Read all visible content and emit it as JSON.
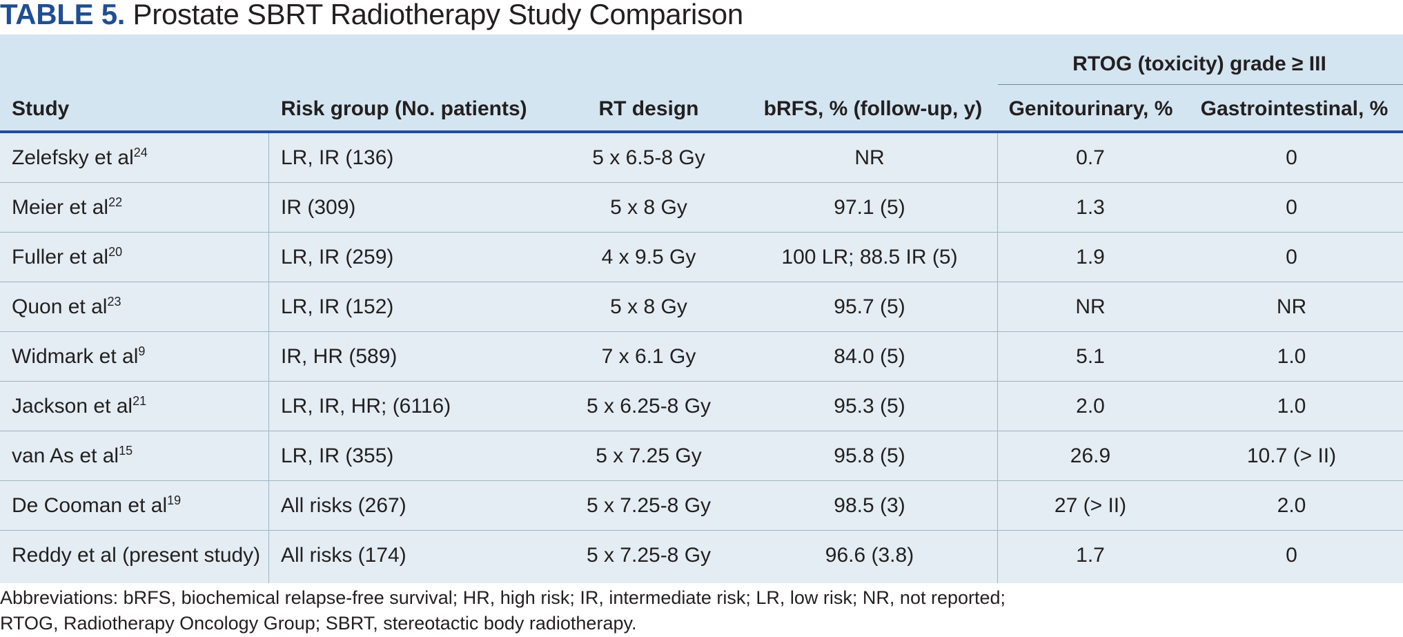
{
  "title": {
    "label": "TABLE 5.",
    "text": "Prostate SBRT Radiotherapy Study Comparison"
  },
  "table": {
    "group_header": "RTOG (toxicity) grade ≥ III",
    "columns": {
      "study": "Study",
      "risk": "Risk group (No. patients)",
      "rt": "RT design",
      "brfs": "bRFS, % (follow-up, y)",
      "gu": "Genitourinary, %",
      "gi": "Gastrointestinal, %"
    },
    "rows": [
      {
        "study": "Zelefsky et al",
        "ref": "24",
        "risk": "LR, IR (136)",
        "rt": "5 x 6.5-8 Gy",
        "brfs": "NR",
        "gu": "0.7",
        "gi": "0"
      },
      {
        "study": "Meier et al",
        "ref": "22",
        "risk": "IR (309)",
        "rt": "5 x 8 Gy",
        "brfs": "97.1 (5)",
        "gu": "1.3",
        "gi": "0"
      },
      {
        "study": "Fuller et al",
        "ref": "20",
        "risk": "LR, IR (259)",
        "rt": "4 x 9.5 Gy",
        "brfs": "100 LR; 88.5 IR (5)",
        "gu": "1.9",
        "gi": "0"
      },
      {
        "study": "Quon et al",
        "ref": "23",
        "risk": "LR, IR (152)",
        "rt": "5 x 8 Gy",
        "brfs": "95.7 (5)",
        "gu": "NR",
        "gi": "NR"
      },
      {
        "study": "Widmark et al",
        "ref": "9",
        "risk": "IR, HR (589)",
        "rt": "7 x 6.1 Gy",
        "brfs": "84.0 (5)",
        "gu": "5.1",
        "gi": "1.0"
      },
      {
        "study": "Jackson et al",
        "ref": "21",
        "risk": "LR, IR, HR; (6116)",
        "rt": "5 x 6.25-8 Gy",
        "brfs": "95.3 (5)",
        "gu": "2.0",
        "gi": "1.0"
      },
      {
        "study": "van As et al",
        "ref": "15",
        "risk": "LR, IR (355)",
        "rt": "5 x 7.25 Gy",
        "brfs": "95.8 (5)",
        "gu": "26.9",
        "gi": "10.7 (> II)"
      },
      {
        "study": "De Cooman et al",
        "ref": "19",
        "risk": "All risks (267)",
        "rt": "5 x 7.25-8 Gy",
        "brfs": "98.5 (3)",
        "gu": "27 (> II)",
        "gi": "2.0"
      },
      {
        "study": "Reddy et al (present study)",
        "ref": "",
        "risk": "All risks (174)",
        "rt": "5 x 7.25-8 Gy",
        "brfs": "96.6 (3.8)",
        "gu": "1.7",
        "gi": "0"
      }
    ]
  },
  "footnote": {
    "line1": "Abbreviations: bRFS, biochemical relapse-free survival; HR, high risk; IR, intermediate risk; LR, low risk; NR, not reported;",
    "line2": "RTOG, Radiotherapy Oncology Group; SBRT, stereotactic body radiotherapy."
  }
}
